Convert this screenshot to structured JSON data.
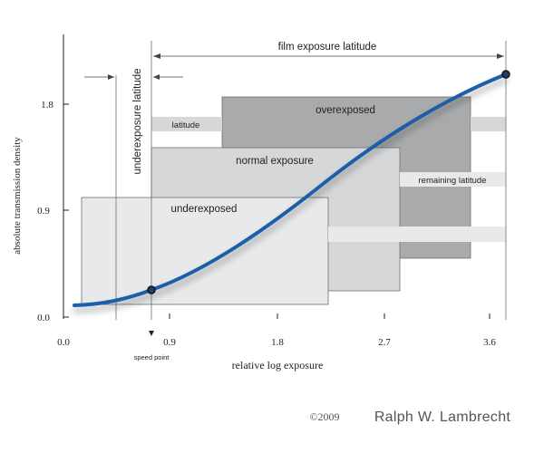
{
  "axes": {
    "ylabel": "absolute transmission density",
    "xlabel": "relative log exposure",
    "yticks": [
      "1.8",
      "0.9",
      "0.0"
    ],
    "xticks": [
      "0.0",
      "0.9",
      "1.8",
      "2.7",
      "3.6"
    ]
  },
  "labels": {
    "film_exposure_latitude": "film exposure latitude",
    "underexposure_latitude": "underexposure latitude",
    "overexposed": "overexposed",
    "latitude": "latitude",
    "normal_exposure": "normal exposure",
    "remaining_latitude": "remaining latitude",
    "underexposed": "underexposed",
    "speed_point": "speed point"
  },
  "credit": {
    "year": "©2009",
    "author": "Ralph W. Lambrecht"
  },
  "colors": {
    "curve": "#1f5fa8",
    "box_light": "#e8e9ea",
    "box_mid": "#d6d7d8",
    "box_dark": "#a9aaab",
    "stroke": "#6d6e70"
  }
}
